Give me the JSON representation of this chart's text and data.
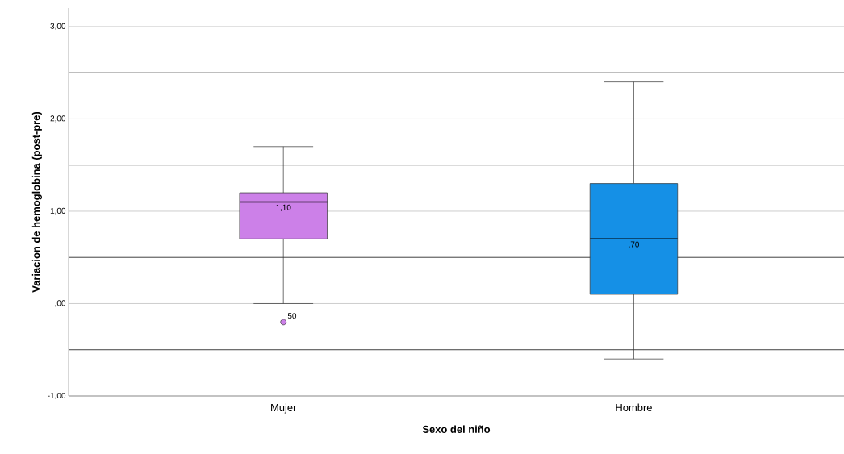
{
  "chart_data": {
    "type": "box",
    "xlabel": "Sexo del niño",
    "ylabel": "Variacion de hemoglobina (post-pre)",
    "categories": [
      "Mujer",
      "Hombre"
    ],
    "boxes": [
      {
        "low": 0,
        "q1": 0.7,
        "median": 1.1,
        "q3": 1.2,
        "high": 1.7,
        "outliers": [
          -0.2
        ]
      },
      {
        "low": -0.6,
        "q1": 0.1,
        "median": 0.7,
        "q3": 1.3,
        "high": 2.4
      }
    ],
    "colors": [
      "#cc80e8",
      "#1590e6"
    ],
    "ylim": [
      -1,
      3.2
    ],
    "yticks": [
      {
        "value": -1,
        "label": "-1,00"
      },
      {
        "value": 0,
        "label": ",00"
      },
      {
        "value": 1,
        "label": "1,00"
      },
      {
        "value": 2,
        "label": "2,00"
      },
      {
        "value": 3,
        "label": "3,00"
      }
    ],
    "grid": "y",
    "ref_lines": [
      {
        "axis": "y",
        "value": -0.5,
        "color": "#404040"
      },
      {
        "axis": "y",
        "value": 0.5,
        "color": "#404040"
      },
      {
        "axis": "y",
        "value": 1.5,
        "color": "#404040"
      },
      {
        "axis": "y",
        "value": 2.5,
        "color": "#404040"
      }
    ],
    "annotations": [
      "1,10",
      ",70",
      "50"
    ]
  }
}
